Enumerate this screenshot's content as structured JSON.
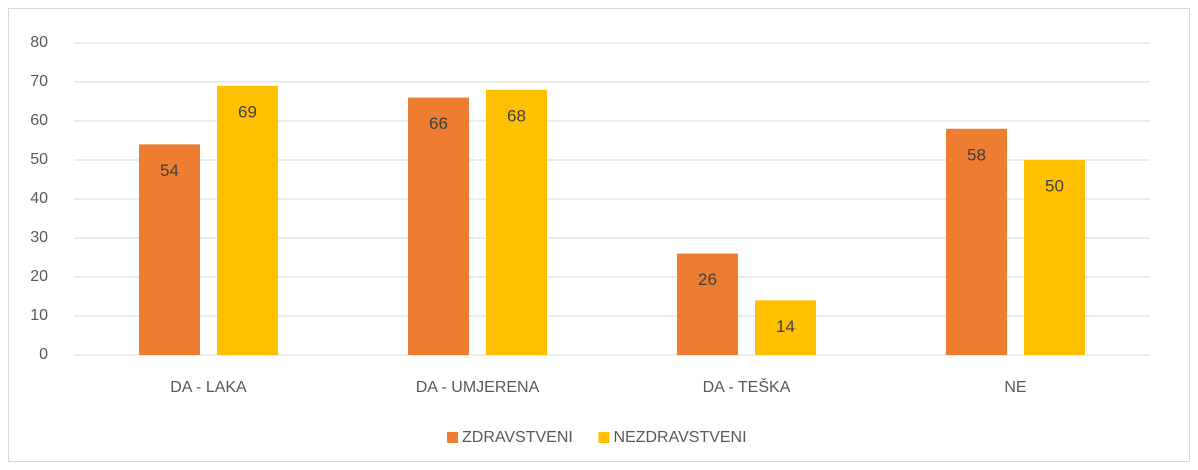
{
  "chart_data": {
    "type": "bar",
    "categories": [
      "DA - LAKA",
      "DA - UMJERENA",
      "DA - TEŠKA",
      "NE"
    ],
    "series": [
      {
        "name": "ZDRAVSTVENI",
        "color": "#ed7d31",
        "values": [
          54,
          66,
          26,
          58
        ]
      },
      {
        "name": "NEZDRAVSTVENI",
        "color": "#ffc000",
        "values": [
          69,
          68,
          14,
          50
        ]
      }
    ],
    "ylim": [
      0,
      80
    ],
    "yticks": [
      0,
      10,
      20,
      30,
      40,
      50,
      60,
      70,
      80
    ],
    "grid": true,
    "legend": "bottom"
  }
}
